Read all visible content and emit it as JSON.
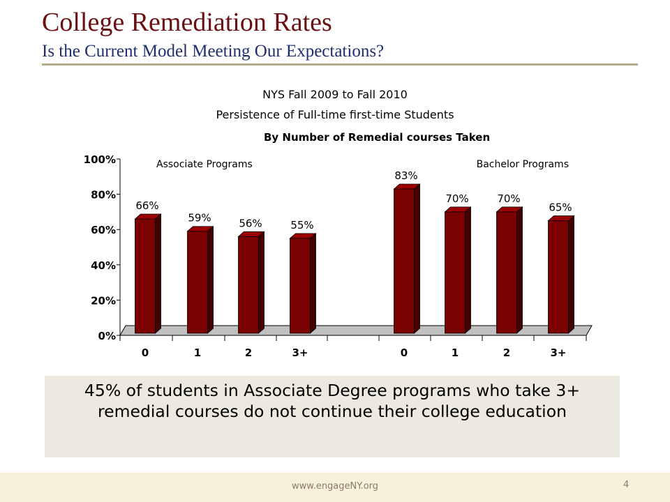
{
  "slide": {
    "title": "College Remediation Rates",
    "subtitle": "Is the Current Model Meeting Our Expectations?",
    "callout": "45% of students in Associate Degree programs who take 3+ remedial courses do not continue their college education",
    "footer_url": "www.engageNY.org",
    "page_number": "4"
  },
  "chart_data": {
    "type": "bar",
    "title_lines": [
      "NYS Fall 2009 to Fall 2010",
      "Persistence of Full-time first-time Students",
      "By Number of Remedial courses Taken"
    ],
    "groups": [
      {
        "name": "Associate Programs",
        "categories": [
          "0",
          "1",
          "2",
          "3+"
        ],
        "values": [
          66,
          59,
          56,
          55
        ],
        "labels": [
          "66%",
          "59%",
          "56%",
          "55%"
        ]
      },
      {
        "name": "Bachelor Programs",
        "categories": [
          "0",
          "1",
          "2",
          "3+"
        ],
        "values": [
          83,
          70,
          70,
          65
        ],
        "labels": [
          "83%",
          "70%",
          "70%",
          "65%"
        ]
      }
    ],
    "y_ticks": [
      "0%",
      "20%",
      "40%",
      "60%",
      "80%",
      "100%"
    ],
    "ylim": [
      0,
      100
    ],
    "bar_color": "#7b0000",
    "floor_color": "#c0c0c0",
    "grid": false
  }
}
